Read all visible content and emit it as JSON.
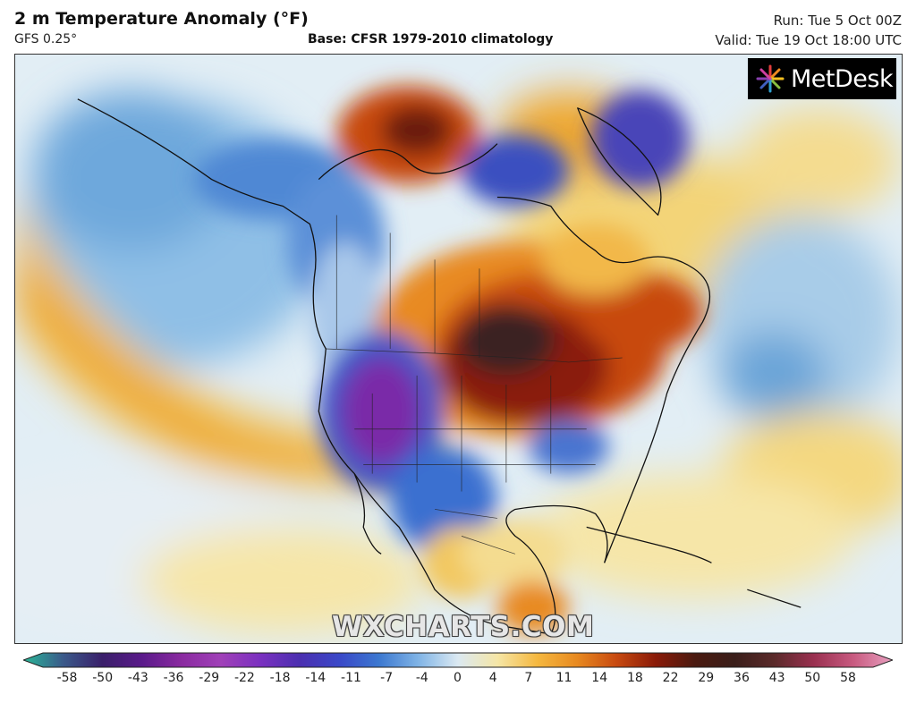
{
  "header": {
    "title": "2 m Temperature Anomaly (°F)",
    "subtitle": "GFS 0.25°",
    "base": "Base: CFSR 1979-2010 climatology",
    "run": "Run: Tue 5 Oct 00Z",
    "valid": "Valid: Tue 19 Oct 18:00 UTC"
  },
  "branding": {
    "logo_text": "MetDesk",
    "watermark": "WXCHARTS.COM"
  },
  "colorbar": {
    "ticks": [
      "-58",
      "-50",
      "-43",
      "-36",
      "-29",
      "-22",
      "-18",
      "-14",
      "-11",
      "-7",
      "-4",
      "0",
      "4",
      "7",
      "11",
      "14",
      "18",
      "22",
      "29",
      "36",
      "43",
      "50",
      "58"
    ],
    "colors": [
      "#2ab898",
      "#3a5a8a",
      "#3a1f6a",
      "#5a1a8a",
      "#8a2aa0",
      "#a040b8",
      "#7a30c0",
      "#4b2fb0",
      "#3a48c8",
      "#3c78d0",
      "#80b4e6",
      "#dbe9f2",
      "#f5e6a6",
      "#f5b840",
      "#e88a20",
      "#c84a10",
      "#8a1a08",
      "#4a1a10",
      "#3a1e1a",
      "#5a2a2a",
      "#9a3050",
      "#c85a80",
      "#e8a0c0"
    ]
  },
  "map": {
    "region": "North America",
    "colors": {
      "warm_core": "#3a2020",
      "warm_dark": "#8a1a08",
      "warm_red": "#c84a10",
      "warm_orange": "#e88a20",
      "warm_yellow": "#f5d070",
      "neutral": "#e4eef4",
      "cool_light": "#9cc4e8",
      "cool_blue": "#3a70d0",
      "cool_deep": "#3a3ab8",
      "cool_purple": "#7a2aa8"
    }
  }
}
